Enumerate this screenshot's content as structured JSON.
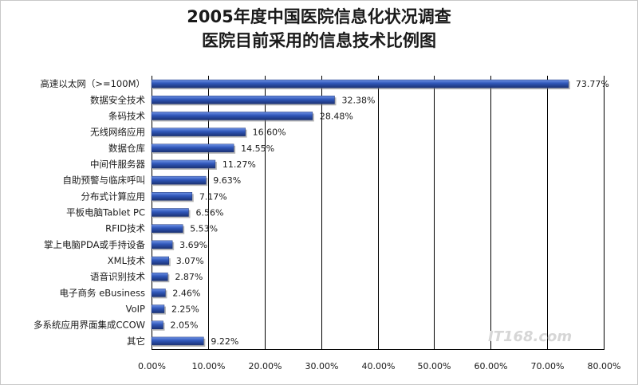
{
  "chart_data": {
    "type": "bar",
    "orientation": "horizontal",
    "title": [
      "2005年度中国医院信息化状况调查",
      "医院目前采用的信息技术比例图"
    ],
    "categories": [
      "高速以太网（>=100M）",
      "数据安全技术",
      "条码技术",
      "无线网络应用",
      "数据仓库",
      "中间件服务器",
      "自助预警与临床呼叫",
      "分布式计算应用",
      "平板电脑Tablet PC",
      "RFID技术",
      "掌上电脑PDA或手持设备",
      "XML技术",
      "语音识别技术",
      "电子商务 eBusiness",
      "VoIP",
      "多系统应用界面集成CCOW",
      "其它"
    ],
    "values": [
      73.77,
      32.38,
      28.48,
      16.6,
      14.55,
      11.27,
      9.63,
      7.17,
      6.56,
      5.53,
      3.69,
      3.07,
      2.87,
      2.46,
      2.25,
      2.05,
      9.22
    ],
    "data_labels": [
      "73.77%",
      "32.38%",
      "28.48%",
      "16.60%",
      "14.55%",
      "11.27%",
      "9.63%",
      "7.17%",
      "6.56%",
      "5.53%",
      "3.69%",
      "3.07%",
      "2.87%",
      "2.46%",
      "2.25%",
      "2.05%",
      "9.22%"
    ],
    "xlim": [
      0,
      80
    ],
    "xticks": [
      0,
      10,
      20,
      30,
      40,
      50,
      60,
      70,
      80
    ],
    "xtick_labels": [
      "0.00%",
      "10.00%",
      "20.00%",
      "30.00%",
      "40.00%",
      "50.00%",
      "60.00%",
      "70.00%",
      "80.00%"
    ],
    "xlabel": "",
    "ylabel": "",
    "grid": "vertical",
    "legend": "none",
    "bar_color": "#2f56b8",
    "bar_highlight": "#6f93e6",
    "bar_shadow": "#1b3275"
  },
  "watermark": "IT168.com"
}
